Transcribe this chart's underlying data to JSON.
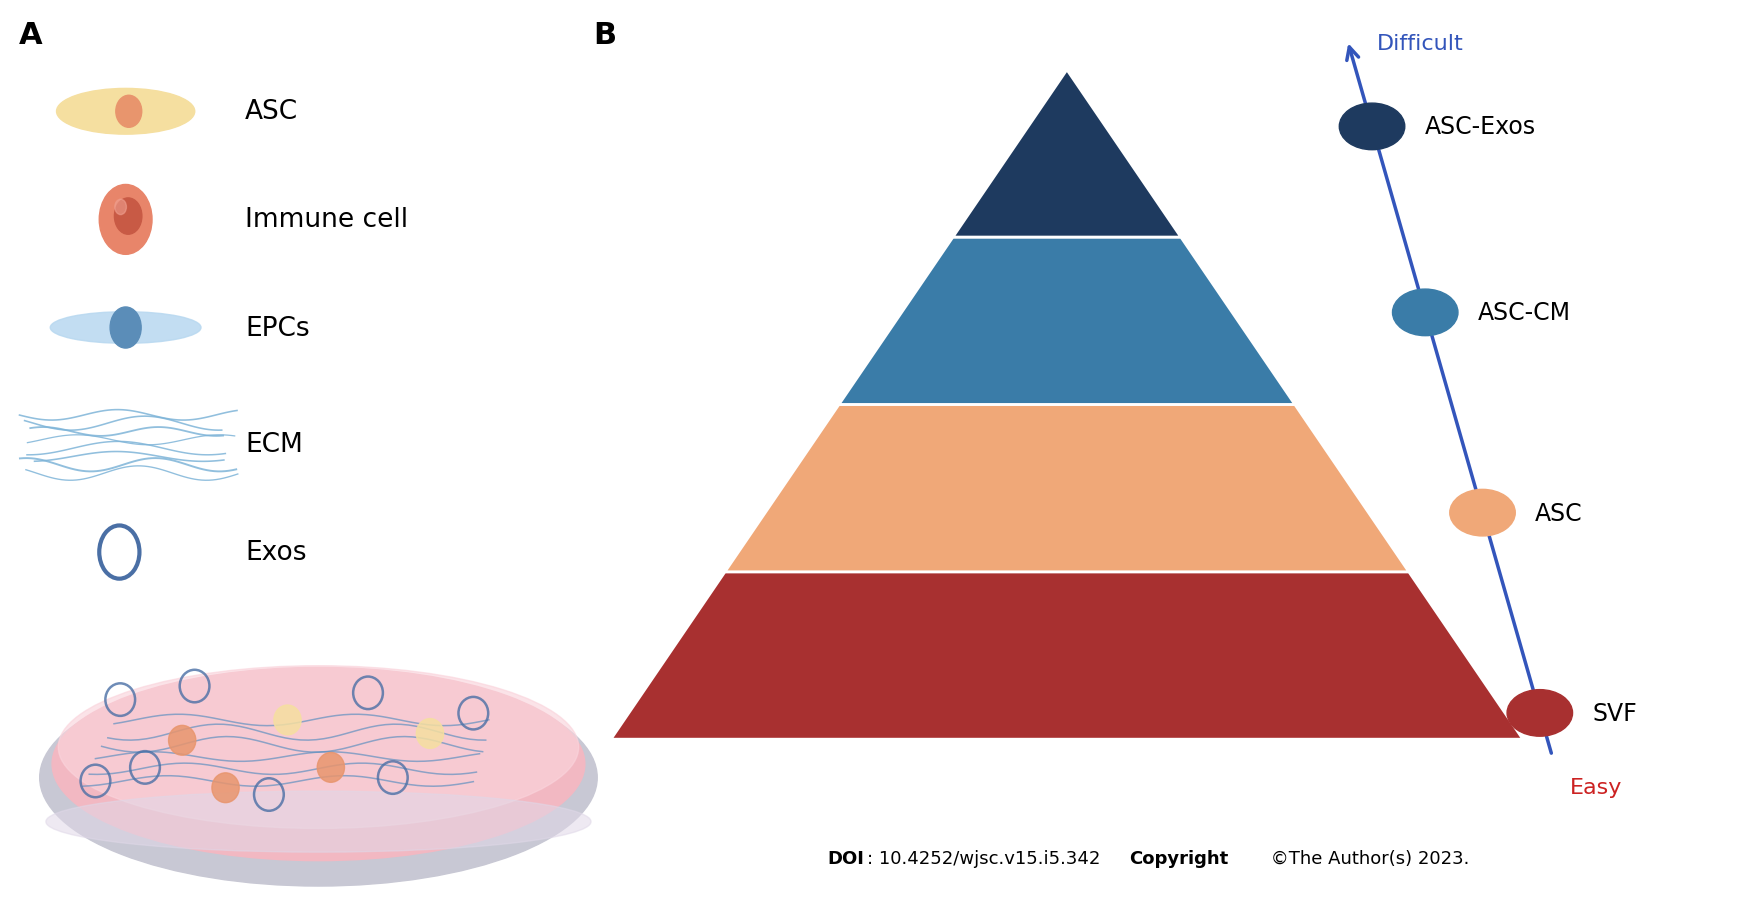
{
  "panel_A_label": "A",
  "panel_B_label": "B",
  "layer_colors": [
    "#A83030",
    "#F0A878",
    "#3A7CA8",
    "#1E3A5F"
  ],
  "layer_labels": [
    "SVF",
    "ASC",
    "ASC-CM",
    "ASC-Exos"
  ],
  "dot_colors": [
    "#A83030",
    "#F0A878",
    "#3A7CA8",
    "#1E3A5F"
  ],
  "arrow_color": "#3355BB",
  "difficult_label": "Difficult",
  "easy_label": "Easy",
  "difficult_color": "#3355BB",
  "easy_color": "#CC2222",
  "legend_labels": [
    "ASC",
    "Immune cell",
    "EPCs",
    "ECM",
    "Exos"
  ],
  "asc_body_color": "#F5DFA0",
  "asc_nucleus_color": "#E8956D",
  "immune_color": "#E8856A",
  "immune_nucleus_color": "#C85A45",
  "epc_body_color": "#B8D8F0",
  "epc_nucleus_color": "#5B8DB8",
  "ecm_color": "#7EB4D8",
  "exos_color": "#4A6FA5",
  "background_color": "#FFFFFF"
}
